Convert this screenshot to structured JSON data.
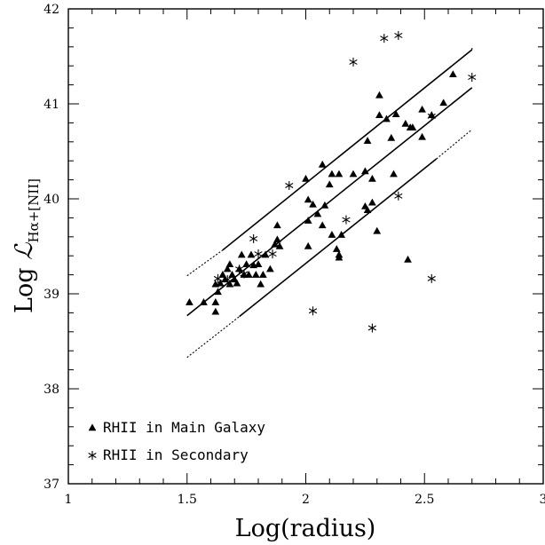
{
  "chart_data": {
    "type": "scatter",
    "xlabel": "Log(radius)",
    "ylabel_prefix": "Log ",
    "ylabel_script": "ℒ",
    "ylabel_subscript": "Hα+[NII]",
    "xlim": [
      1,
      3
    ],
    "ylim": [
      37,
      42
    ],
    "xticks": [
      "1",
      "1.5",
      "2",
      "2.5",
      "3"
    ],
    "yticks": [
      "37",
      "38",
      "39",
      "40",
      "41",
      "42"
    ],
    "grid": false,
    "legend_position": "bottom-left",
    "series": [
      {
        "name": "RHII in Main Galaxy",
        "marker": "triangle",
        "points": [
          [
            1.51,
            38.91
          ],
          [
            1.57,
            38.91
          ],
          [
            1.62,
            39.1
          ],
          [
            1.62,
            38.91
          ],
          [
            1.62,
            38.81
          ],
          [
            1.63,
            39.02
          ],
          [
            1.64,
            39.11
          ],
          [
            1.65,
            39.2
          ],
          [
            1.66,
            39.15
          ],
          [
            1.67,
            39.26
          ],
          [
            1.68,
            39.31
          ],
          [
            1.68,
            39.1
          ],
          [
            1.69,
            39.2
          ],
          [
            1.7,
            39.15
          ],
          [
            1.71,
            39.11
          ],
          [
            1.72,
            39.26
          ],
          [
            1.73,
            39.41
          ],
          [
            1.74,
            39.2
          ],
          [
            1.75,
            39.31
          ],
          [
            1.76,
            39.2
          ],
          [
            1.77,
            39.41
          ],
          [
            1.78,
            39.3
          ],
          [
            1.79,
            39.2
          ],
          [
            1.8,
            39.31
          ],
          [
            1.81,
            39.1
          ],
          [
            1.82,
            39.2
          ],
          [
            1.83,
            39.41
          ],
          [
            1.85,
            39.26
          ],
          [
            1.87,
            39.52
          ],
          [
            1.88,
            39.57
          ],
          [
            1.88,
            39.72
          ],
          [
            1.89,
            39.5
          ],
          [
            2.0,
            40.21
          ],
          [
            2.01,
            39.77
          ],
          [
            2.01,
            39.5
          ],
          [
            2.01,
            39.99
          ],
          [
            2.03,
            39.94
          ],
          [
            2.05,
            39.84
          ],
          [
            2.07,
            40.36
          ],
          [
            2.07,
            39.72
          ],
          [
            2.08,
            39.93
          ],
          [
            2.1,
            40.15
          ],
          [
            2.11,
            39.62
          ],
          [
            2.11,
            40.26
          ],
          [
            2.13,
            39.47
          ],
          [
            2.14,
            40.26
          ],
          [
            2.14,
            39.41
          ],
          [
            2.14,
            39.38
          ],
          [
            2.15,
            39.62
          ],
          [
            2.2,
            40.26
          ],
          [
            2.25,
            40.29
          ],
          [
            2.25,
            39.92
          ],
          [
            2.26,
            39.88
          ],
          [
            2.26,
            40.61
          ],
          [
            2.28,
            39.96
          ],
          [
            2.28,
            40.21
          ],
          [
            2.3,
            39.66
          ],
          [
            2.31,
            41.09
          ],
          [
            2.31,
            40.88
          ],
          [
            2.34,
            40.84
          ],
          [
            2.36,
            40.64
          ],
          [
            2.37,
            40.26
          ],
          [
            2.38,
            40.89
          ],
          [
            2.42,
            40.79
          ],
          [
            2.43,
            39.36
          ],
          [
            2.44,
            40.75
          ],
          [
            2.45,
            40.75
          ],
          [
            2.49,
            40.65
          ],
          [
            2.49,
            40.94
          ],
          [
            2.53,
            40.88
          ],
          [
            2.58,
            41.01
          ],
          [
            2.62,
            41.31
          ]
        ]
      },
      {
        "name": "RHII in Secondary",
        "marker": "asterisk",
        "points": [
          [
            1.63,
            39.16
          ],
          [
            1.67,
            39.15
          ],
          [
            1.72,
            39.26
          ],
          [
            1.74,
            39.21
          ],
          [
            1.78,
            39.58
          ],
          [
            1.8,
            39.42
          ],
          [
            1.86,
            39.42
          ],
          [
            1.93,
            40.14
          ],
          [
            2.03,
            38.82
          ],
          [
            2.17,
            39.78
          ],
          [
            2.2,
            41.44
          ],
          [
            2.28,
            38.64
          ],
          [
            2.33,
            41.69
          ],
          [
            2.39,
            41.72
          ],
          [
            2.39,
            40.03
          ],
          [
            2.53,
            39.16
          ],
          [
            2.53,
            40.87
          ],
          [
            2.7,
            41.28
          ]
        ]
      }
    ],
    "lines": [
      {
        "style": "solid",
        "x": [
          1.5,
          2.7
        ],
        "y": [
          38.77,
          41.17
        ]
      },
      {
        "style": "solid",
        "x": [
          1.65,
          2.7
        ],
        "y": [
          39.46,
          41.57
        ]
      },
      {
        "style": "dotted",
        "x": [
          1.5,
          1.65
        ],
        "y": [
          39.19,
          39.46
        ]
      },
      {
        "style": "dotted",
        "x": [
          2.7,
          2.7
        ],
        "y": [
          41.57,
          41.6
        ]
      },
      {
        "style": "solid",
        "x": [
          1.72,
          2.55
        ],
        "y": [
          38.76,
          40.42
        ]
      },
      {
        "style": "dotted",
        "x": [
          1.5,
          1.72
        ],
        "y": [
          38.33,
          38.76
        ]
      },
      {
        "style": "dotted",
        "x": [
          2.55,
          2.7
        ],
        "y": [
          40.42,
          40.73
        ]
      }
    ]
  }
}
